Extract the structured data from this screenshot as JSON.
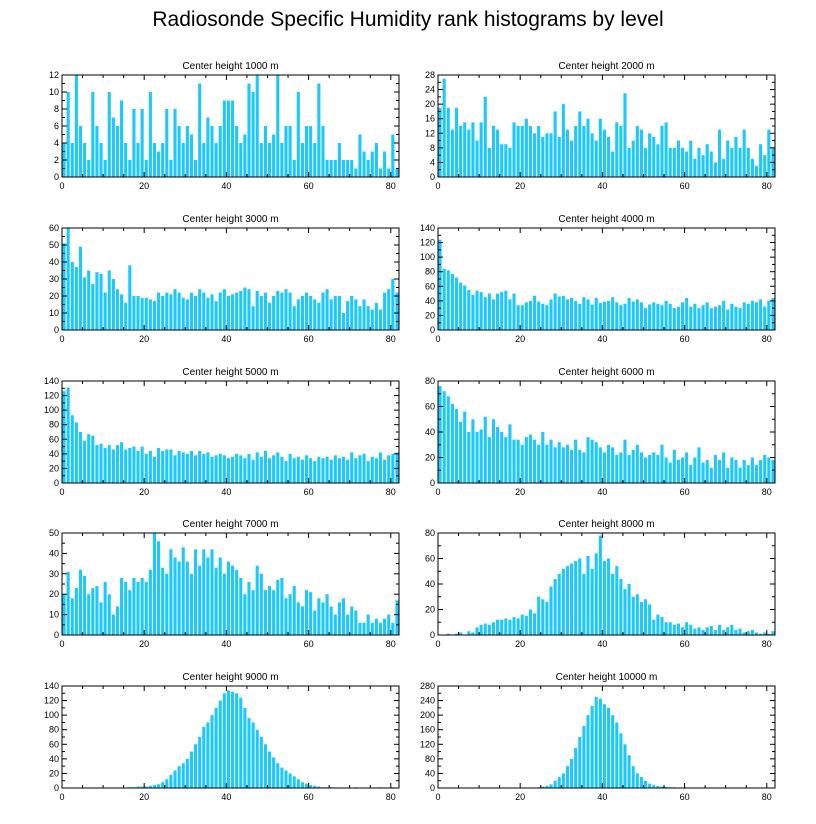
{
  "title": "Radiosonde Specific Humidity rank histograms by level",
  "bar_color": "#1ec8ff",
  "chart_data": [
    {
      "type": "bar",
      "title": "Center height 1000 m",
      "xlim": [
        0,
        82
      ],
      "ylim": [
        0,
        12
      ],
      "xticks": [
        0,
        20,
        40,
        60,
        80
      ],
      "yticks": [
        0,
        2,
        4,
        6,
        8,
        10,
        12
      ],
      "values": [
        4,
        10,
        4,
        12,
        6,
        4,
        2,
        10,
        6,
        4,
        2,
        10,
        7,
        6,
        9,
        4,
        2,
        8,
        4,
        8,
        2,
        10,
        4,
        3,
        4,
        8,
        2,
        8,
        6,
        4,
        6,
        5,
        2,
        11,
        4,
        7,
        6,
        4,
        6,
        9,
        9,
        9,
        6,
        4,
        5,
        11,
        10,
        12,
        4,
        6,
        4,
        5,
        12,
        4,
        6,
        6,
        2,
        10,
        4,
        6,
        6,
        4,
        11,
        6,
        2,
        2,
        2,
        4,
        2,
        2,
        2,
        1,
        5,
        3,
        2,
        3,
        4,
        1,
        3,
        1,
        5,
        1
      ]
    },
    {
      "type": "bar",
      "title": "Center height 2000 m",
      "xlim": [
        0,
        82
      ],
      "ylim": [
        0,
        28
      ],
      "xticks": [
        0,
        20,
        40,
        60,
        80
      ],
      "yticks": [
        0,
        4,
        8,
        12,
        16,
        20,
        24,
        28
      ],
      "values": [
        19,
        27,
        19,
        13,
        19,
        14,
        15,
        13,
        15,
        10,
        15,
        22,
        8,
        14,
        13,
        9,
        9,
        8,
        15,
        14,
        14,
        16,
        14,
        12,
        14,
        11,
        12,
        12,
        18,
        11,
        20,
        13,
        10,
        14,
        18,
        14,
        16,
        12,
        10,
        16,
        13,
        11,
        7,
        15,
        14,
        23,
        8,
        10,
        14,
        13,
        8,
        12,
        11,
        9,
        14,
        15,
        8,
        8,
        10,
        8,
        7,
        10,
        5,
        8,
        6,
        9,
        7,
        4,
        13,
        5,
        10,
        8,
        11,
        8,
        13,
        8,
        5,
        3,
        9,
        6,
        13,
        8
      ]
    },
    {
      "type": "bar",
      "title": "Center height 3000 m",
      "xlim": [
        0,
        82
      ],
      "ylim": [
        0,
        60
      ],
      "xticks": [
        0,
        20,
        40,
        60,
        80
      ],
      "yticks": [
        0,
        10,
        20,
        30,
        40,
        50,
        60
      ],
      "values": [
        51,
        60,
        40,
        37,
        49,
        31,
        35,
        27,
        34,
        33,
        22,
        35,
        30,
        24,
        21,
        16,
        38,
        20,
        20,
        19,
        19,
        18,
        17,
        22,
        20,
        22,
        21,
        24,
        22,
        19,
        18,
        22,
        20,
        24,
        22,
        19,
        21,
        17,
        22,
        24,
        20,
        21,
        22,
        23,
        25,
        24,
        14,
        23,
        20,
        22,
        16,
        20,
        23,
        22,
        24,
        22,
        14,
        18,
        20,
        22,
        20,
        18,
        16,
        22,
        24,
        18,
        20,
        20,
        10,
        17,
        20,
        18,
        14,
        18,
        14,
        12,
        16,
        12,
        22,
        24,
        30,
        22
      ]
    },
    {
      "type": "bar",
      "title": "Center height 4000 m",
      "xlim": [
        0,
        82
      ],
      "ylim": [
        0,
        140
      ],
      "xticks": [
        0,
        20,
        40,
        60,
        80
      ],
      "yticks": [
        0,
        20,
        40,
        60,
        80,
        100,
        120,
        140
      ],
      "values": [
        124,
        84,
        82,
        77,
        72,
        65,
        61,
        55,
        48,
        54,
        52,
        45,
        50,
        42,
        50,
        52,
        54,
        42,
        50,
        34,
        34,
        38,
        40,
        47,
        39,
        36,
        34,
        42,
        50,
        46,
        47,
        42,
        44,
        40,
        36,
        45,
        42,
        35,
        44,
        37,
        39,
        40,
        45,
        38,
        34,
        36,
        44,
        39,
        42,
        38,
        30,
        35,
        38,
        36,
        34,
        40,
        36,
        30,
        32,
        38,
        44,
        32,
        36,
        30,
        34,
        38,
        30,
        32,
        34,
        40,
        28,
        36,
        32,
        30,
        38,
        36,
        40,
        38,
        42,
        32,
        40,
        44
      ]
    },
    {
      "type": "bar",
      "title": "Center height 5000 m",
      "xlim": [
        0,
        82
      ],
      "ylim": [
        0,
        140
      ],
      "xticks": [
        0,
        20,
        40,
        60,
        80
      ],
      "yticks": [
        0,
        20,
        40,
        60,
        80,
        100,
        120,
        140
      ],
      "values": [
        126,
        131,
        93,
        83,
        70,
        58,
        67,
        65,
        52,
        54,
        48,
        52,
        46,
        52,
        56,
        46,
        48,
        50,
        44,
        50,
        40,
        44,
        36,
        48,
        44,
        46,
        46,
        38,
        44,
        42,
        40,
        44,
        38,
        44,
        40,
        42,
        36,
        38,
        40,
        38,
        34,
        36,
        40,
        38,
        34,
        40,
        32,
        42,
        36,
        44,
        34,
        38,
        42,
        36,
        30,
        40,
        34,
        36,
        32,
        38,
        34,
        30,
        36,
        34,
        36,
        32,
        38,
        34,
        36,
        32,
        42,
        34,
        38,
        40,
        30,
        36,
        34,
        42,
        32,
        38,
        40,
        42
      ]
    },
    {
      "type": "bar",
      "title": "Center height 6000 m",
      "xlim": [
        0,
        82
      ],
      "ylim": [
        0,
        80
      ],
      "xticks": [
        0,
        20,
        40,
        60,
        80
      ],
      "yticks": [
        0,
        20,
        40,
        60,
        80
      ],
      "values": [
        76,
        72,
        68,
        62,
        58,
        48,
        56,
        40,
        50,
        40,
        42,
        52,
        36,
        50,
        44,
        40,
        36,
        46,
        34,
        34,
        30,
        36,
        38,
        34,
        30,
        40,
        30,
        34,
        28,
        32,
        28,
        30,
        26,
        34,
        26,
        24,
        36,
        34,
        32,
        28,
        24,
        30,
        28,
        22,
        24,
        34,
        22,
        26,
        30,
        24,
        20,
        22,
        24,
        22,
        30,
        20,
        16,
        26,
        18,
        20,
        24,
        14,
        20,
        28,
        16,
        18,
        12,
        22,
        18,
        24,
        12,
        20,
        18,
        12,
        18,
        14,
        20,
        14,
        18,
        22,
        20,
        18
      ]
    },
    {
      "type": "bar",
      "title": "Center height 7000 m",
      "xlim": [
        0,
        82
      ],
      "ylim": [
        0,
        50
      ],
      "xticks": [
        0,
        20,
        40,
        60,
        80
      ],
      "yticks": [
        0,
        10,
        20,
        30,
        40,
        50
      ],
      "values": [
        20,
        31,
        18,
        23,
        32,
        29,
        20,
        23,
        24,
        16,
        26,
        20,
        10,
        14,
        28,
        26,
        22,
        28,
        26,
        28,
        26,
        32,
        50,
        46,
        33,
        30,
        42,
        38,
        36,
        43,
        36,
        30,
        42,
        34,
        42,
        38,
        42,
        33,
        38,
        30,
        36,
        34,
        32,
        28,
        20,
        26,
        22,
        34,
        30,
        22,
        24,
        22,
        27,
        28,
        18,
        20,
        24,
        16,
        14,
        22,
        21,
        12,
        18,
        16,
        20,
        14,
        10,
        16,
        18,
        10,
        14,
        12,
        6,
        6,
        10,
        6,
        8,
        6,
        8,
        10,
        6,
        17
      ]
    },
    {
      "type": "bar",
      "title": "Center height 8000 m",
      "xlim": [
        0,
        82
      ],
      "ylim": [
        0,
        80
      ],
      "xticks": [
        0,
        20,
        40,
        60,
        80
      ],
      "yticks": [
        0,
        20,
        40,
        60,
        80
      ],
      "values": [
        0,
        0,
        1,
        0,
        1,
        2,
        0,
        3,
        2,
        6,
        8,
        9,
        8,
        10,
        12,
        12,
        13,
        12,
        14,
        13,
        16,
        15,
        20,
        17,
        30,
        28,
        26,
        38,
        44,
        48,
        52,
        54,
        56,
        58,
        60,
        48,
        62,
        52,
        64,
        78,
        58,
        60,
        48,
        54,
        44,
        36,
        40,
        30,
        32,
        26,
        28,
        24,
        12,
        16,
        14,
        10,
        10,
        8,
        9,
        6,
        10,
        8,
        5,
        6,
        4,
        6,
        7,
        4,
        8,
        4,
        6,
        8,
        4,
        5,
        2,
        3,
        4,
        2,
        1,
        2,
        1,
        3
      ]
    },
    {
      "type": "bar",
      "title": "Center height 9000 m",
      "xlim": [
        0,
        82
      ],
      "ylim": [
        0,
        140
      ],
      "xticks": [
        0,
        20,
        40,
        60,
        80
      ],
      "yticks": [
        0,
        20,
        40,
        60,
        80,
        100,
        120,
        140
      ],
      "values": [
        0,
        0,
        0,
        0,
        0,
        0,
        0,
        0,
        0,
        0,
        0,
        0,
        0,
        0,
        0,
        0,
        1,
        1,
        2,
        2,
        2,
        3,
        4,
        5,
        8,
        12,
        18,
        24,
        30,
        34,
        40,
        50,
        60,
        70,
        84,
        90,
        100,
        110,
        120,
        130,
        134,
        132,
        130,
        124,
        110,
        96,
        90,
        80,
        70,
        60,
        50,
        42,
        34,
        28,
        24,
        20,
        16,
        12,
        8,
        6,
        4,
        3,
        2,
        1,
        1,
        1,
        0,
        0,
        0,
        0,
        0,
        1,
        0,
        0,
        0,
        0,
        0,
        1,
        0,
        0,
        1,
        0
      ]
    },
    {
      "type": "bar",
      "title": "Center height 10000 m",
      "xlim": [
        0,
        82
      ],
      "ylim": [
        0,
        280
      ],
      "xticks": [
        0,
        20,
        40,
        60,
        80
      ],
      "yticks": [
        0,
        40,
        80,
        120,
        160,
        200,
        240,
        280
      ],
      "values": [
        0,
        0,
        0,
        0,
        0,
        0,
        0,
        0,
        0,
        0,
        0,
        0,
        0,
        0,
        0,
        0,
        0,
        0,
        0,
        0,
        0,
        0,
        0,
        0,
        2,
        4,
        6,
        10,
        20,
        30,
        40,
        60,
        80,
        110,
        140,
        170,
        200,
        225,
        250,
        245,
        230,
        220,
        200,
        180,
        150,
        120,
        90,
        60,
        40,
        30,
        20,
        12,
        8,
        6,
        4,
        3,
        2,
        2,
        1,
        1,
        1,
        0,
        0,
        0,
        0,
        0,
        0,
        0,
        0,
        0,
        0,
        0,
        0,
        0,
        0,
        1,
        0,
        0,
        0,
        0,
        0,
        0
      ]
    }
  ]
}
